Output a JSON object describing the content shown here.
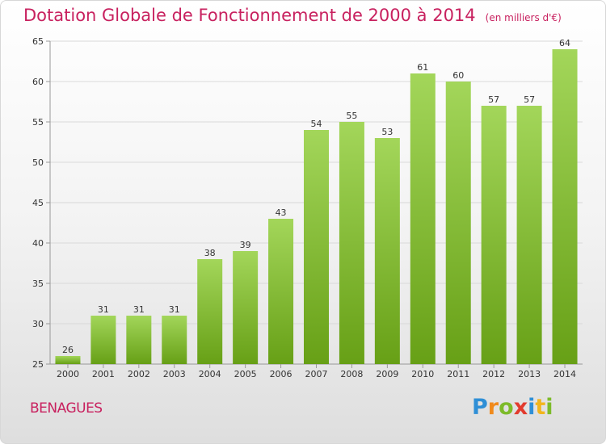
{
  "title": "Dotation Globale de Fonctionnement de 2000 à 2014",
  "subtitle": "(en milliers d'€)",
  "commune": "BENAGUES",
  "logo_text": "Proxiti",
  "colors": {
    "bar_top": "#9fd154",
    "bar_bottom": "#6aa218",
    "title": "#c8215f"
  },
  "chart_data": {
    "type": "bar",
    "title": "Dotation Globale de Fonctionnement de 2000 à 2014",
    "subtitle": "(en milliers d'€)",
    "categories": [
      "2000",
      "2001",
      "2002",
      "2003",
      "2004",
      "2005",
      "2006",
      "2007",
      "2008",
      "2009",
      "2010",
      "2011",
      "2012",
      "2013",
      "2014"
    ],
    "values": [
      26,
      31,
      31,
      31,
      38,
      39,
      43,
      54,
      55,
      53,
      61,
      60,
      57,
      57,
      64
    ],
    "ylim": [
      25,
      65
    ],
    "yticks": [
      25,
      30,
      35,
      40,
      45,
      50,
      55,
      60,
      65
    ],
    "grid": true,
    "xlabel": "",
    "ylabel": ""
  }
}
